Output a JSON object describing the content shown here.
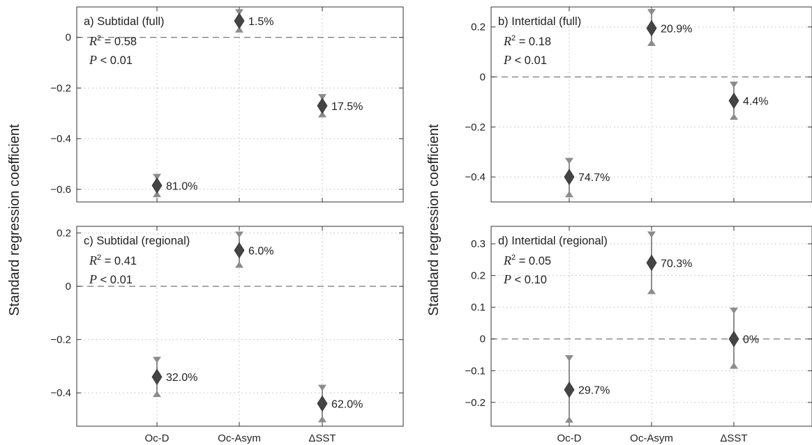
{
  "chart_data": [
    {
      "type": "errorbar",
      "title": "a) Subtidal (full)",
      "stats": {
        "r2_symbol": "R",
        "r2_sup": "2",
        "r2_value": "= 0.58",
        "p_symbol": "P",
        "p_value": "< 0.01"
      },
      "categories": [
        "Oc-D",
        "Oc-Asym",
        "ΔSST"
      ],
      "values": [
        -0.585,
        0.065,
        -0.27
      ],
      "lower": [
        -0.62,
        0.03,
        -0.305
      ],
      "upper": [
        -0.55,
        0.1,
        -0.235
      ],
      "labels": [
        "81.0%",
        "1.5%",
        "17.5%"
      ],
      "ylim": [
        -0.65,
        0.12
      ],
      "yticks": [
        0,
        -0.2,
        -0.4,
        -0.6
      ],
      "ytick_labels": [
        "0",
        "−0.2",
        "−0.4",
        "−0.6"
      ],
      "grid": true
    },
    {
      "type": "errorbar",
      "title": "b) Intertidal (full)",
      "stats": {
        "r2_symbol": "R",
        "r2_sup": "2",
        "r2_value": "= 0.18",
        "p_symbol": "P",
        "p_value": "< 0.01"
      },
      "categories": [
        "Oc-D",
        "Oc-Asym",
        "ΔSST"
      ],
      "values": [
        -0.4,
        0.195,
        -0.095
      ],
      "lower": [
        -0.47,
        0.135,
        -0.16
      ],
      "upper": [
        -0.335,
        0.26,
        -0.03
      ],
      "labels": [
        "74.7%",
        "20.9%",
        "4.4%"
      ],
      "ylim": [
        -0.5,
        0.28
      ],
      "yticks": [
        0.2,
        0,
        -0.2,
        -0.4
      ],
      "ytick_labels": [
        "0.2",
        "0",
        "−0.2",
        "−0.4"
      ],
      "grid": true
    },
    {
      "type": "errorbar",
      "title": "c) Subtidal (regional)",
      "stats": {
        "r2_symbol": "R",
        "r2_sup": "2",
        "r2_value": "= 0.41",
        "p_symbol": "P",
        "p_value": "< 0.01"
      },
      "categories": [
        "Oc-D",
        "Oc-Asym",
        "ΔSST"
      ],
      "values": [
        -0.34,
        0.135,
        -0.44
      ],
      "lower": [
        -0.405,
        0.08,
        -0.5
      ],
      "upper": [
        -0.275,
        0.195,
        -0.38
      ],
      "labels": [
        "32.0%",
        "6.0%",
        "62.0%"
      ],
      "ylim": [
        -0.525,
        0.225
      ],
      "yticks": [
        0.2,
        0,
        -0.2,
        -0.4
      ],
      "ytick_labels": [
        "0.2",
        "0",
        "−0.2",
        "−0.4"
      ],
      "grid": true
    },
    {
      "type": "errorbar",
      "title": "d) Intertidal (regional)",
      "stats": {
        "r2_symbol": "R",
        "r2_sup": "2",
        "r2_value": "= 0.05",
        "p_symbol": "P",
        "p_value": "< 0.10"
      },
      "categories": [
        "Oc-D",
        "Oc-Asym",
        "ΔSST"
      ],
      "values": [
        -0.16,
        0.24,
        0.0
      ],
      "lower": [
        -0.255,
        0.15,
        -0.085
      ],
      "upper": [
        -0.06,
        0.33,
        0.09
      ],
      "labels": [
        "29.7%",
        "70.3%",
        "0%"
      ],
      "ylim": [
        -0.275,
        0.355
      ],
      "yticks": [
        0.3,
        0.2,
        0.1,
        0,
        -0.1,
        -0.2
      ],
      "ytick_labels": [
        "0.3",
        "0.2",
        "0.1",
        "0",
        "−0.1",
        "−0.2"
      ],
      "grid": true
    }
  ],
  "ylabel": "Standard regression coefficient",
  "colors": {
    "marker": "#444444",
    "errorbar": "#8c8c8c",
    "grid": "#bbbbbb",
    "axis": "#333333",
    "zero_line": "#777777"
  }
}
